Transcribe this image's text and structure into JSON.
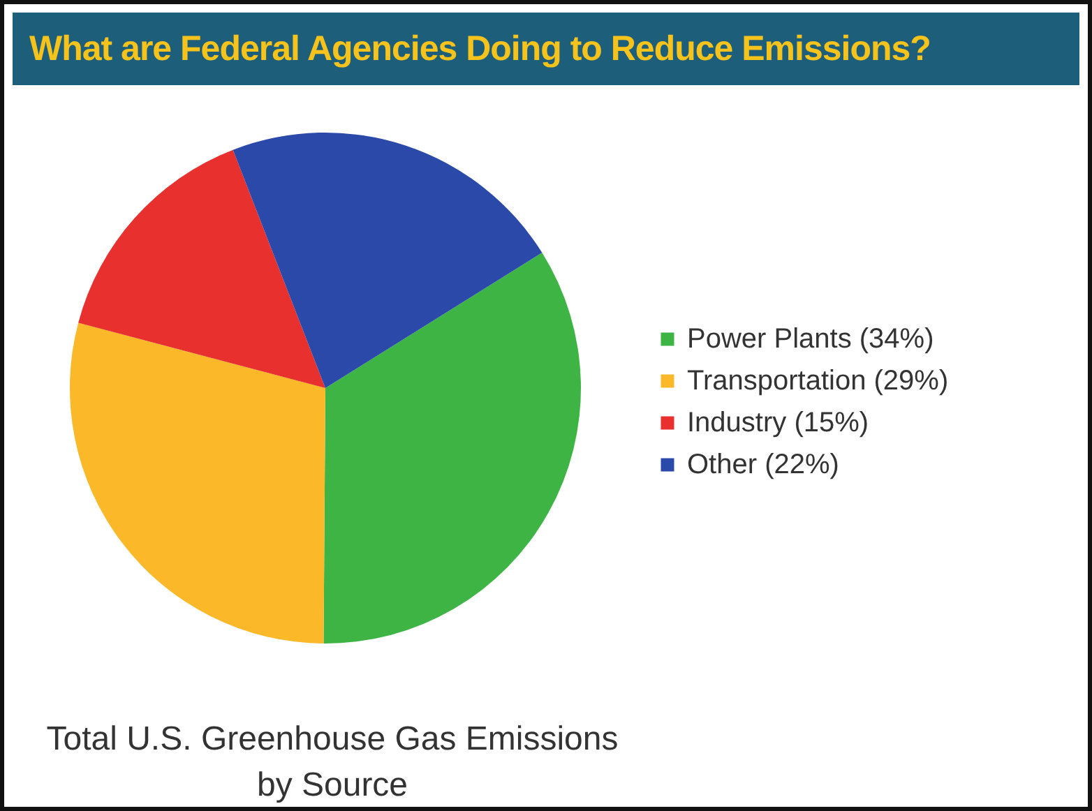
{
  "chart_data": {
    "type": "pie",
    "title": "What are Federal Agencies Doing to Reduce Emissions?",
    "categories": [
      "Power Plants (34%)",
      "Transportation (29%)",
      "Industry (15%)",
      "Other (22%)"
    ],
    "values": [
      34,
      29,
      15,
      22
    ],
    "colors": [
      "#3db444",
      "#fbb829",
      "#e8302e",
      "#2b49a8"
    ],
    "legend": "right",
    "annotations": [
      "Total U.S. Greenhouse Gas Emissions by Source"
    ]
  }
}
